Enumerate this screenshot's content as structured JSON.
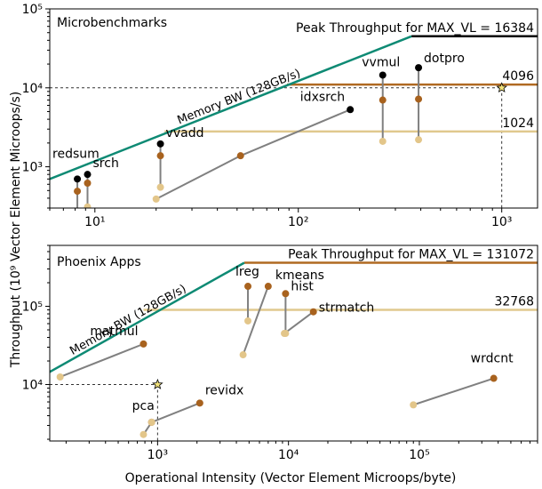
{
  "figure": {
    "ylabel": "Throughput (10⁹ Vector Element Microops/s)",
    "xlabel": "Operational Intensity (Vector Element Microops/byte)"
  },
  "colors": {
    "memory_bw": "#0e8a74",
    "peak_max": "#000000",
    "peak_mid": "#b06a22",
    "peak_low": "#e0c98e",
    "point_black": "#000000",
    "point_mid": "#a8621e",
    "point_light": "#e3c68a",
    "connector": "#808080",
    "star": "#f2e27a"
  },
  "chart_data": [
    {
      "type": "scatter",
      "title": "Microbenchmarks",
      "scale": "log-log",
      "xlim": [
        6,
        1500
      ],
      "ylim": [
        300,
        100000
      ],
      "x_ticks": [
        10,
        100,
        1000
      ],
      "x_tick_labels": [
        "10¹",
        "10²",
        "10³"
      ],
      "y_ticks": [
        1000,
        10000,
        100000
      ],
      "y_tick_labels": [
        "10³",
        "10⁴",
        "10⁵"
      ],
      "memory_bw": {
        "label": "Memory BW (128GB/s)",
        "from": [
          6,
          700
        ],
        "to": [
          360,
          45000
        ]
      },
      "rooflines": [
        {
          "label": "Peak Throughput for MAX_VL = 16384",
          "value": 45000,
          "from_x": 360,
          "color": "peak_max"
        },
        {
          "label": "4096",
          "value": 11000,
          "from_x": 88,
          "color": "peak_mid"
        },
        {
          "label": "1024",
          "value": 2800,
          "from_x": 22,
          "color": "peak_low"
        }
      ],
      "reference_point": {
        "x": 1000,
        "y": 10000
      },
      "kernels": [
        {
          "name": "redsum",
          "points": [
            [
              8.2,
              230
            ],
            [
              8.2,
              490
            ],
            [
              8.2,
              700
            ]
          ],
          "colors": [
            "point_light",
            "point_mid",
            "point_black"
          ]
        },
        {
          "name": "srch",
          "points": [
            [
              9.2,
              310
            ],
            [
              9.2,
              620
            ],
            [
              9.2,
              800
            ]
          ],
          "colors": [
            "point_light",
            "point_mid",
            "point_black"
          ]
        },
        {
          "name": "vvadd",
          "points": [
            [
              21,
              550
            ],
            [
              21,
              1380
            ],
            [
              21,
              1950
            ]
          ],
          "colors": [
            "point_light",
            "point_mid",
            "point_black"
          ]
        },
        {
          "name": "idxsrch",
          "points": [
            [
              20,
              390
            ],
            [
              52,
              1380
            ],
            [
              180,
              5300
            ]
          ],
          "colors": [
            "point_light",
            "point_mid",
            "point_black"
          ]
        },
        {
          "name": "vvmul",
          "points": [
            [
              260,
              2100
            ],
            [
              260,
              7000
            ],
            [
              260,
              14500
            ]
          ],
          "colors": [
            "point_light",
            "point_mid",
            "point_black"
          ]
        },
        {
          "name": "dotpro",
          "points": [
            [
              390,
              2200
            ],
            [
              390,
              7200
            ],
            [
              390,
              18000
            ]
          ],
          "colors": [
            "point_light",
            "point_mid",
            "point_black"
          ]
        }
      ]
    },
    {
      "type": "scatter",
      "title": "Phoenix Apps",
      "scale": "log-log",
      "xlim": [
        150,
        800000
      ],
      "ylim": [
        1900,
        600000
      ],
      "x_ticks": [
        1000,
        10000,
        100000
      ],
      "x_tick_labels": [
        "10³",
        "10⁴",
        "10⁵"
      ],
      "y_ticks": [
        10000,
        100000
      ],
      "y_tick_labels": [
        "10⁴",
        "10⁵"
      ],
      "memory_bw": {
        "label": "Memory BW (128GB/s)",
        "from": [
          150,
          14500
        ],
        "to": [
          4600,
          360000
        ]
      },
      "rooflines": [
        {
          "label": "Peak Throughput for MAX_VL = 131072",
          "value": 360000,
          "from_x": 4600,
          "color": "peak_mid"
        },
        {
          "label": "32768",
          "value": 90000,
          "from_x": 780,
          "color": "peak_low"
        }
      ],
      "reference_point": {
        "x": 1000,
        "y": 10000
      },
      "kernels": [
        {
          "name": "matmul",
          "points": [
            [
              180,
              12500
            ],
            [
              780,
              33000
            ]
          ],
          "colors": [
            "point_light",
            "point_mid"
          ]
        },
        {
          "name": "lreg",
          "points": [
            [
              4900,
              65000
            ],
            [
              4900,
              180000
            ]
          ],
          "colors": [
            "point_light",
            "point_mid"
          ]
        },
        {
          "name": "kmeans",
          "points": [
            [
              4500,
              24000
            ],
            [
              7000,
              180000
            ]
          ],
          "colors": [
            "point_light",
            "point_mid"
          ]
        },
        {
          "name": "hist",
          "points": [
            [
              9500,
              45000
            ],
            [
              9500,
              145000
            ]
          ],
          "colors": [
            "point_light",
            "point_mid"
          ]
        },
        {
          "name": "strmatch",
          "points": [
            [
              9300,
              45000
            ],
            [
              15500,
              85000
            ]
          ],
          "colors": [
            "point_light",
            "point_mid"
          ]
        },
        {
          "name": "pca",
          "points": [
            [
              780,
              2300
            ],
            [
              900,
              3300
            ]
          ],
          "colors": [
            "point_light",
            "point_mid"
          ]
        },
        {
          "name": "revidx",
          "points": [
            [
              900,
              3300
            ],
            [
              2100,
              5800
            ]
          ],
          "colors": [
            "point_light",
            "point_mid"
          ]
        },
        {
          "name": "wrdcnt",
          "points": [
            [
              90000,
              5500
            ],
            [
              370000,
              12000
            ]
          ],
          "colors": [
            "point_light",
            "point_mid"
          ]
        }
      ]
    }
  ]
}
